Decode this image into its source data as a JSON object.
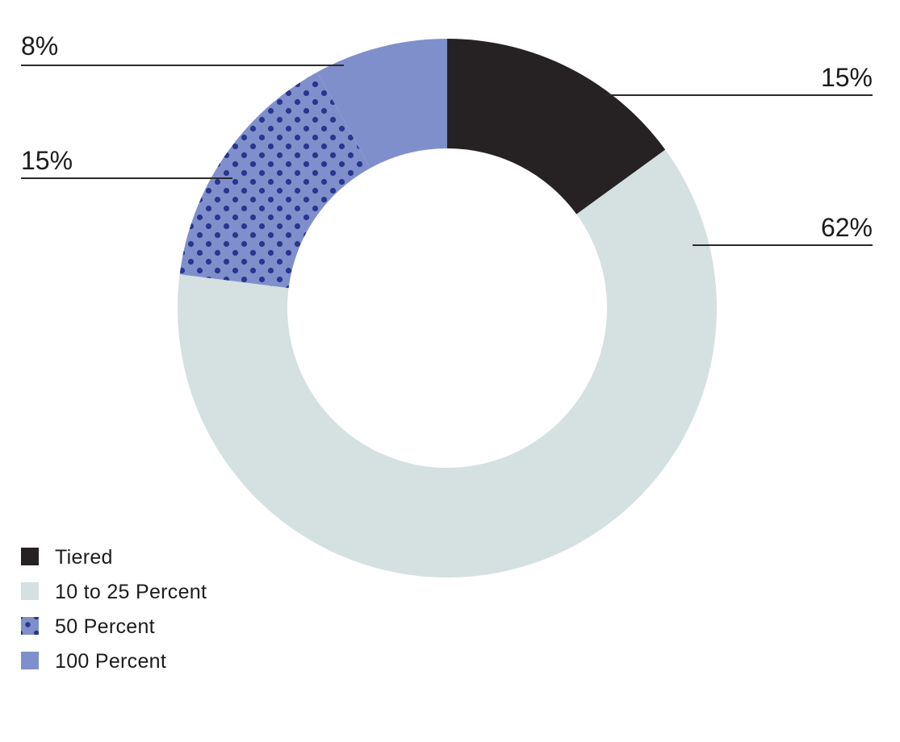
{
  "chart_data": {
    "type": "pie",
    "donut": true,
    "title": "",
    "slices": [
      {
        "name": "Tiered",
        "value": 15,
        "label": "15%",
        "color": "#262223",
        "pattern": "solid"
      },
      {
        "name": "10 to 25 Percent",
        "value": 62,
        "label": "62%",
        "color": "#d5e0e1",
        "pattern": "solid"
      },
      {
        "name": "50 Percent",
        "value": 15,
        "label": "15%",
        "color": "#7f8fcb",
        "pattern": "dots",
        "dot_color": "#28368e"
      },
      {
        "name": "100 Percent",
        "value": 8,
        "label": "8%",
        "color": "#7f8fcb",
        "pattern": "solid"
      }
    ],
    "legend": {
      "position": "bottom-left",
      "entries": [
        "Tiered",
        "10 to 25 Percent",
        "50 Percent",
        "100 Percent"
      ]
    }
  }
}
